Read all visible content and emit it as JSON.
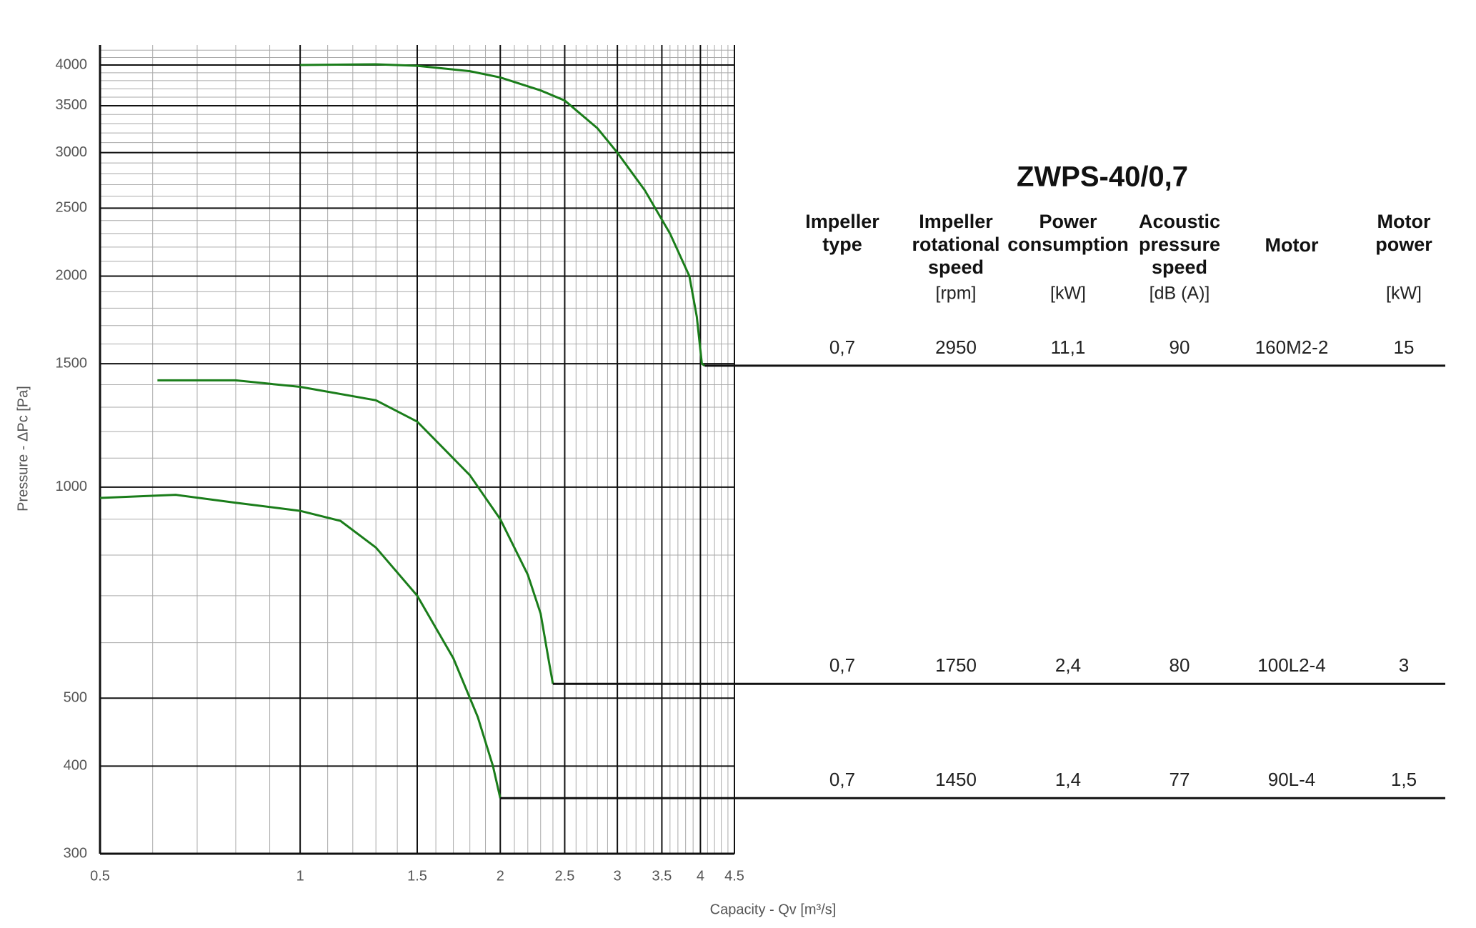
{
  "chart_data": {
    "type": "line",
    "xlabel": "Capacity - Qv [m³/s]",
    "ylabel": "Pressure - ΔPc [Pa]",
    "log_x": true,
    "log_y": true,
    "grid": true,
    "xlim": [
      0.5,
      4.5
    ],
    "ylim": [
      300,
      4272
    ],
    "xticks": [
      0.5,
      1,
      1.5,
      2,
      2.5,
      3,
      3.5,
      4,
      4.5
    ],
    "yticks": [
      300,
      400,
      500,
      1000,
      1500,
      2000,
      2500,
      3000,
      3500,
      4000
    ],
    "xminor": [
      0.6,
      0.7,
      0.8,
      0.9,
      1.1,
      1.2,
      1.3,
      1.4,
      1.6,
      1.7,
      1.8,
      1.9,
      2.1,
      2.2,
      2.3,
      2.4,
      2.6,
      2.7,
      2.8,
      2.9,
      3.1,
      3.2,
      3.3,
      3.4,
      3.6,
      3.7,
      3.8,
      3.9,
      4.1,
      4.2,
      4.3,
      4.4
    ],
    "yminor": [
      600,
      700,
      800,
      900,
      1100,
      1200,
      1300,
      1400,
      1600,
      1700,
      1800,
      1900,
      2100,
      2200,
      2300,
      2400,
      2600,
      2700,
      2800,
      2900,
      3100,
      3200,
      3300,
      3400,
      3600,
      3700,
      3800,
      3900,
      4100,
      4200
    ],
    "series": [
      {
        "name": "2950",
        "color": "#1a7d1a",
        "x": [
          1,
          1.3,
          1.5,
          1.8,
          2.0,
          2.3,
          2.5,
          2.8,
          3.0,
          3.3,
          3.6,
          3.85,
          3.95,
          4.02,
          4.06
        ],
        "values": [
          4000,
          4010,
          3990,
          3920,
          3840,
          3680,
          3560,
          3250,
          3000,
          2650,
          2300,
          2000,
          1750,
          1500,
          1490
        ]
      },
      {
        "name": "1750",
        "color": "#1a7d1a",
        "x": [
          0.61,
          0.8,
          1,
          1.3,
          1.5,
          1.8,
          2.0,
          2.2,
          2.3,
          2.37,
          2.4
        ],
        "values": [
          1420,
          1420,
          1390,
          1330,
          1240,
          1040,
          900,
          750,
          660,
          560,
          524
        ]
      },
      {
        "name": "1450",
        "color": "#1a7d1a",
        "x": [
          0.5,
          0.65,
          0.8,
          1,
          1.15,
          1.3,
          1.5,
          1.7,
          1.85,
          1.95,
          2.0
        ],
        "values": [
          965,
          975,
          950,
          925,
          895,
          820,
          700,
          570,
          470,
          400,
          360
        ]
      }
    ]
  },
  "table": {
    "title": "ZWPS-40/0,7",
    "headers": [
      [
        "Impeller",
        "type"
      ],
      [
        "Impeller",
        "rotational",
        "speed"
      ],
      [
        "Power",
        "consumption"
      ],
      [
        "Acoustic",
        "pressure",
        "speed"
      ],
      [
        "Motor"
      ],
      [
        "Motor",
        "power"
      ]
    ],
    "units": [
      null,
      "[rpm]",
      "[kW]",
      "[dB (A)]",
      null,
      "[kW]"
    ],
    "rows": [
      [
        "0,7",
        "2950",
        "11,1",
        "90",
        "160M2-2",
        "15"
      ],
      [
        "0,7",
        "1750",
        "2,4",
        "80",
        "100L2-4",
        "3"
      ],
      [
        "0,7",
        "1450",
        "1,4",
        "77",
        "90L-4",
        "1,5"
      ]
    ]
  }
}
